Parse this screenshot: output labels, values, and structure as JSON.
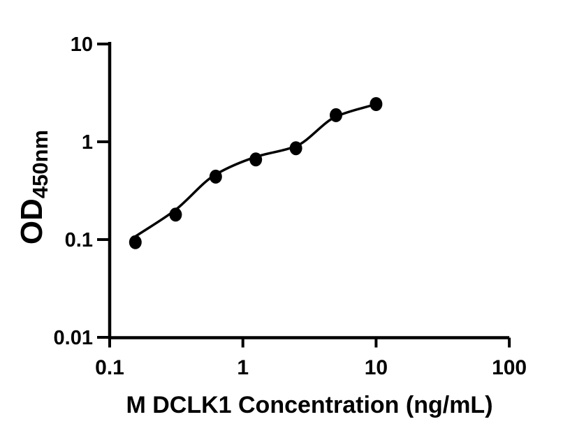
{
  "figure": {
    "background_color": "#ffffff",
    "foreground_color": "#000000"
  },
  "chart_data": {
    "type": "scatter",
    "title": "",
    "xlabel": "M DCLK1 Concentration (ng/mL)",
    "ylabel": "OD",
    "ylabel_sub": "450nm",
    "xscale": "log",
    "yscale": "log",
    "xlim": [
      0.1,
      100
    ],
    "ylim": [
      0.01,
      10
    ],
    "x_ticks": [
      0.1,
      1,
      10,
      100
    ],
    "x_tick_labels": [
      "0.1",
      "1",
      "10",
      "100"
    ],
    "y_ticks": [
      0.01,
      0.1,
      1,
      10
    ],
    "y_tick_labels": [
      "0.01",
      "0.1",
      "1",
      "10"
    ],
    "grid": false,
    "legend": null,
    "points": {
      "x": [
        0.156,
        0.3125,
        0.625,
        1.25,
        2.5,
        5,
        10
      ],
      "y": [
        0.094,
        0.18,
        0.44,
        0.66,
        0.86,
        1.87,
        2.43
      ]
    },
    "fit_curve": {
      "x": [
        0.155,
        0.31,
        0.62,
        1.25,
        2.5,
        5,
        10
      ],
      "y": [
        0.107,
        0.2,
        0.46,
        0.7,
        0.9,
        1.81,
        2.43
      ]
    },
    "marker": {
      "shape": "circle",
      "color": "#000000"
    },
    "line": {
      "color": "#000000"
    },
    "axis_color": "#000000"
  }
}
